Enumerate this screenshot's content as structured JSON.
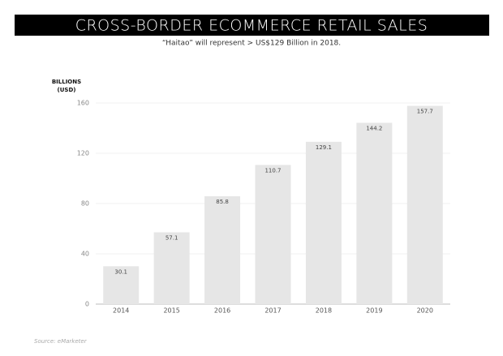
{
  "chart_data": {
    "type": "bar",
    "title": "CROSS-BORDER ECOMMERCE RETAIL SALES",
    "subtitle": "“Haitao” will represent > US$129 Billion in 2018.",
    "ylabel": [
      "BILLIONS",
      "(USD)"
    ],
    "categories": [
      "2014",
      "2015",
      "2016",
      "2017",
      "2018",
      "2019",
      "2020"
    ],
    "values": [
      30.1,
      57.1,
      85.8,
      110.7,
      129.1,
      144.2,
      157.7
    ],
    "color": "#e6e6e6",
    "ylim": [
      0,
      160
    ],
    "yticks": [
      0,
      40,
      80,
      120,
      160
    ],
    "grid": true,
    "source": "Source: eMarketer"
  }
}
